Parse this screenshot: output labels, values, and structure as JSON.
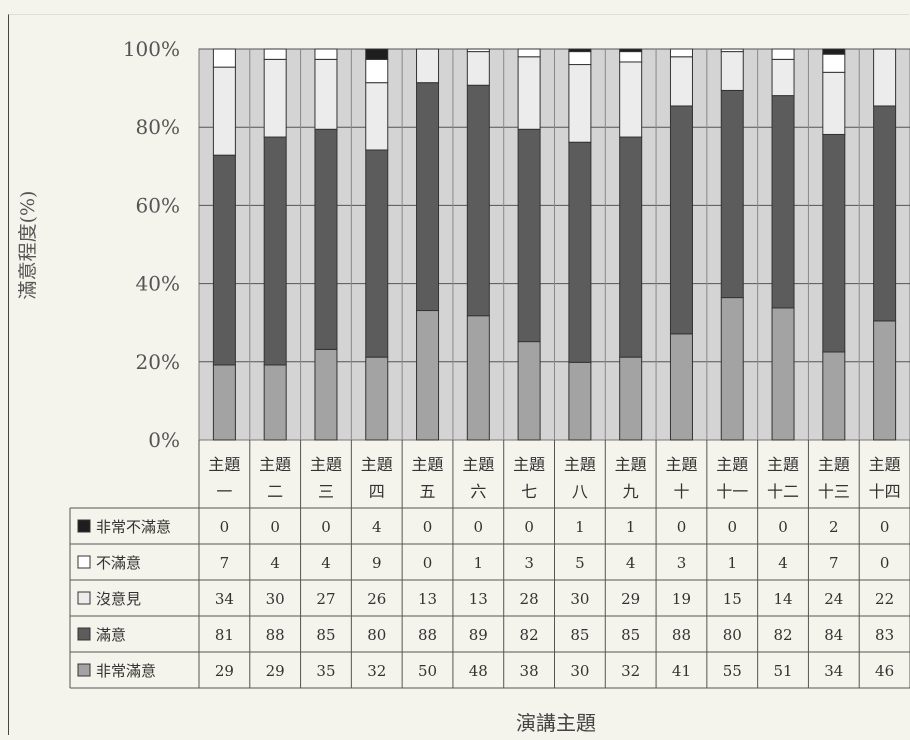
{
  "chart_data": {
    "type": "bar",
    "stacked": "percent",
    "ylabel": "滿意程度(%)",
    "xlabel": "演講主題",
    "ylim": [
      0,
      100
    ],
    "y_ticks": [
      "0%",
      "20%",
      "40%",
      "60%",
      "80%",
      "100%"
    ],
    "grid": true,
    "categories": [
      [
        "主題",
        "一"
      ],
      [
        "主題",
        "二"
      ],
      [
        "主題",
        "三"
      ],
      [
        "主題",
        "四"
      ],
      [
        "主題",
        "五"
      ],
      [
        "主題",
        "六"
      ],
      [
        "主題",
        "七"
      ],
      [
        "主題",
        "八"
      ],
      [
        "主題",
        "九"
      ],
      [
        "主題",
        "十"
      ],
      [
        "主題",
        "十一"
      ],
      [
        "主題",
        "十二"
      ],
      [
        "主題",
        "十三"
      ],
      [
        "主題",
        "十四"
      ]
    ],
    "series": [
      {
        "name": "非常不滿意",
        "color": "#1e1e1e",
        "values": [
          0,
          0,
          0,
          4,
          0,
          0,
          0,
          1,
          1,
          0,
          0,
          0,
          2,
          0
        ]
      },
      {
        "name": "不滿意",
        "color": "#ffffff",
        "values": [
          7,
          4,
          4,
          9,
          0,
          1,
          3,
          5,
          4,
          3,
          1,
          4,
          7,
          0
        ]
      },
      {
        "name": "沒意見",
        "color": "#ececec",
        "values": [
          34,
          30,
          27,
          26,
          13,
          13,
          28,
          30,
          29,
          19,
          15,
          14,
          24,
          22
        ]
      },
      {
        "name": "滿意",
        "color": "#5c5c5c",
        "values": [
          81,
          88,
          85,
          80,
          88,
          89,
          82,
          85,
          85,
          88,
          80,
          82,
          84,
          83
        ]
      },
      {
        "name": "非常滿意",
        "color": "#a3a3a3",
        "values": [
          29,
          29,
          35,
          32,
          50,
          48,
          38,
          30,
          32,
          41,
          55,
          51,
          34,
          46
        ]
      }
    ],
    "stack_order": [
      "非常滿意",
      "滿意",
      "沒意見",
      "不滿意",
      "非常不滿意"
    ]
  }
}
